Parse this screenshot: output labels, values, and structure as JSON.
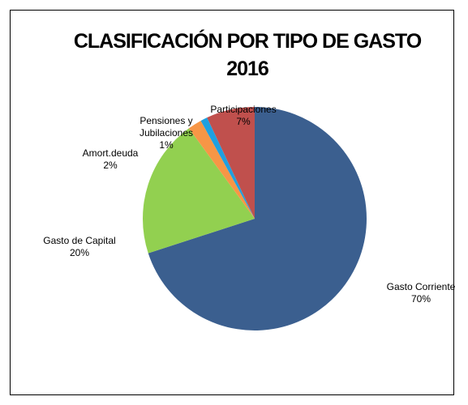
{
  "chart_data": {
    "type": "pie",
    "title": "CLASIFICACIÓN POR TIPO DE GASTO 2016",
    "categories": [
      "Gasto Corriente",
      "Gasto de Capital",
      "Amort.deuda",
      "Pensiones y Jubilaciones",
      "Participaciones"
    ],
    "values": [
      70,
      20,
      2,
      1,
      7
    ],
    "value_labels": [
      "70%",
      "20%",
      "2%",
      "1%",
      "7%"
    ],
    "colors": [
      "#3b5f8f",
      "#92d050",
      "#f79646",
      "#1fa0e0",
      "#c0504d"
    ]
  }
}
